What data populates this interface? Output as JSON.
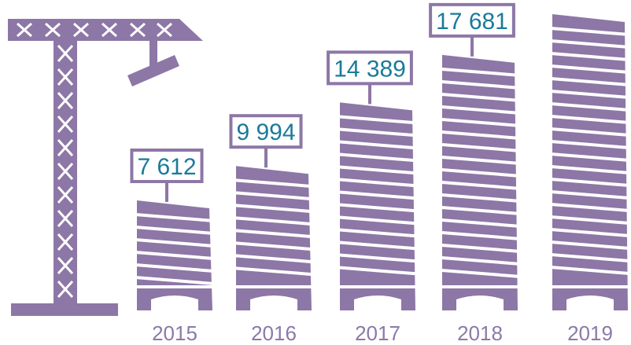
{
  "chart_data": {
    "type": "building",
    "categories": [
      "2015",
      "2016",
      "2017",
      "2018",
      "2019"
    ],
    "values": [
      7612,
      9994,
      14389,
      17681,
      20500
    ],
    "value_labels": [
      "7 612",
      "9 994",
      "14 389",
      "17 681",
      null
    ],
    "color": "#8d77a6"
  }
}
